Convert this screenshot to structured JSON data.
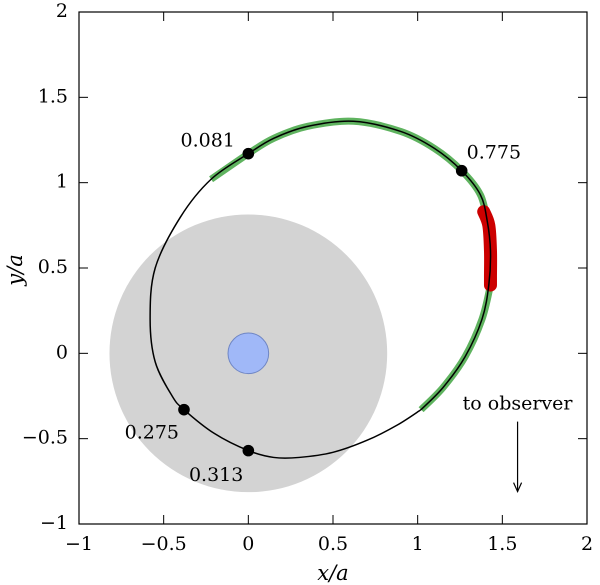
{
  "chart_data": {
    "type": "scatter",
    "xlabel": "x/a",
    "ylabel": "y/a",
    "xlim": [
      -1,
      2
    ],
    "ylim": [
      -1,
      2
    ],
    "x_ticks": [
      {
        "value": -1,
        "label": "−1"
      },
      {
        "value": -0.5,
        "label": "−0.5"
      },
      {
        "value": 0,
        "label": "0"
      },
      {
        "value": 0.5,
        "label": "0.5"
      },
      {
        "value": 1,
        "label": "1"
      },
      {
        "value": 1.5,
        "label": "1.5"
      },
      {
        "value": 2,
        "label": "2"
      }
    ],
    "y_ticks": [
      {
        "value": -1,
        "label": "−1"
      },
      {
        "value": -0.5,
        "label": "−0.5"
      },
      {
        "value": 0,
        "label": "0"
      },
      {
        "value": 0.5,
        "label": "0.5"
      },
      {
        "value": 1,
        "label": "1"
      },
      {
        "value": 1.5,
        "label": "1.5"
      },
      {
        "value": 2,
        "label": "2"
      }
    ],
    "grid": false,
    "disk": {
      "center": [
        0,
        0
      ],
      "radius": 0.82,
      "color": "#d3d3d3"
    },
    "star": {
      "center": [
        0,
        0
      ],
      "radius": 0.12,
      "color": "#a0b8f8",
      "edge_color": "#6f86c4"
    },
    "orbit": {
      "color": "#000000",
      "points": [
        [
          1.02,
          -0.33
        ],
        [
          1.15,
          -0.2
        ],
        [
          1.28,
          -0.02
        ],
        [
          1.38,
          0.2
        ],
        [
          1.42,
          0.4
        ],
        [
          1.43,
          0.6
        ],
        [
          1.41,
          0.78
        ],
        [
          1.37,
          0.93
        ],
        [
          1.26,
          1.07
        ],
        [
          1.1,
          1.2
        ],
        [
          0.9,
          1.3
        ],
        [
          0.62,
          1.36
        ],
        [
          0.35,
          1.33
        ],
        [
          0.15,
          1.26
        ],
        [
          0.0,
          1.17
        ],
        [
          -0.22,
          1.02
        ],
        [
          -0.4,
          0.8
        ],
        [
          -0.55,
          0.5
        ],
        [
          -0.58,
          0.2
        ],
        [
          -0.55,
          -0.05
        ],
        [
          -0.45,
          -0.25
        ],
        [
          -0.38,
          -0.33
        ],
        [
          -0.2,
          -0.47
        ],
        [
          0.0,
          -0.57
        ],
        [
          0.15,
          -0.61
        ],
        [
          0.3,
          -0.61
        ],
        [
          0.5,
          -0.58
        ],
        [
          0.7,
          -0.51
        ],
        [
          0.88,
          -0.42
        ],
        [
          1.02,
          -0.33
        ]
      ]
    },
    "highlight_green": {
      "color": "#5fb35f",
      "segments": [
        [
          [
            -0.22,
            1.02
          ],
          [
            0.0,
            1.17
          ],
          [
            0.15,
            1.26
          ],
          [
            0.35,
            1.33
          ],
          [
            0.62,
            1.36
          ],
          [
            0.9,
            1.3
          ],
          [
            1.1,
            1.2
          ],
          [
            1.26,
            1.07
          ],
          [
            1.37,
            0.93
          ],
          [
            1.41,
            0.78
          ]
        ],
        [
          [
            1.43,
            0.4
          ],
          [
            1.38,
            0.2
          ],
          [
            1.28,
            -0.02
          ],
          [
            1.15,
            -0.2
          ],
          [
            1.02,
            -0.33
          ]
        ]
      ]
    },
    "highlight_red": {
      "color": "#cc0000",
      "points": [
        [
          1.39,
          0.83
        ],
        [
          1.42,
          0.75
        ],
        [
          1.43,
          0.6
        ],
        [
          1.43,
          0.45
        ],
        [
          1.43,
          0.4
        ]
      ]
    },
    "labeled_points": [
      {
        "x": 0.0,
        "y": 1.17,
        "label": "0.081",
        "label_x": -0.24,
        "label_y": 1.24
      },
      {
        "x": 1.26,
        "y": 1.07,
        "label": "0.775",
        "label_x": 1.45,
        "label_y": 1.17
      },
      {
        "x": -0.38,
        "y": -0.33,
        "label": "0.275",
        "label_x": -0.57,
        "label_y": -0.47
      },
      {
        "x": 0.0,
        "y": -0.57,
        "label": "0.313",
        "label_x": -0.19,
        "label_y": -0.72
      }
    ],
    "annotations": [
      {
        "text": "to observer",
        "x": 1.59,
        "y": -0.3,
        "arrow_from": [
          1.59,
          -0.4
        ],
        "arrow_to": [
          1.59,
          -0.81
        ]
      }
    ]
  }
}
